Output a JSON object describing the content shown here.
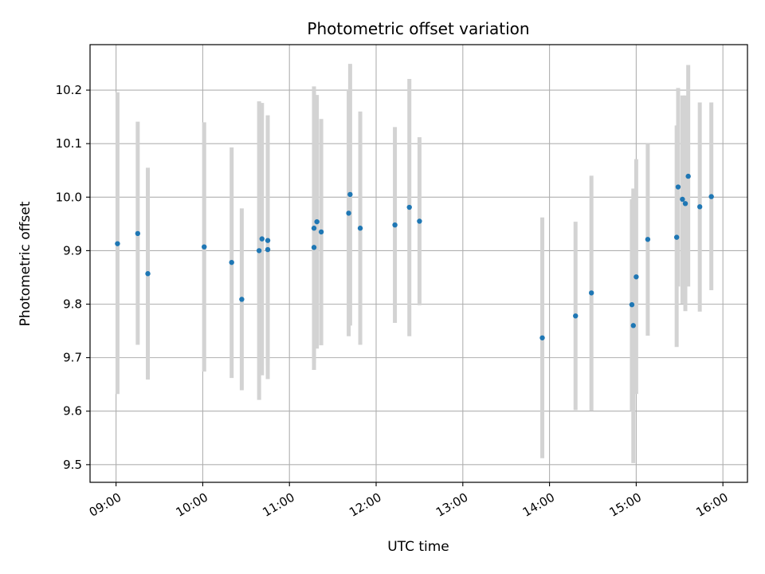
{
  "chart_data": {
    "type": "scatter",
    "title": "Photometric offset variation",
    "xlabel": "UTC time",
    "ylabel": "Photometric offset",
    "xlim": [
      "08:42",
      "16:17"
    ],
    "ylim": [
      9.467,
      10.285
    ],
    "grid": true,
    "x_ticks": [
      "09:00",
      "10:00",
      "11:00",
      "12:00",
      "13:00",
      "14:00",
      "15:00",
      "16:00"
    ],
    "y_ticks": [
      9.5,
      9.6,
      9.7,
      9.8,
      9.9,
      10.0,
      10.1,
      10.2
    ],
    "y_tick_labels": [
      "9.5",
      "9.6",
      "9.7",
      "9.8",
      "9.9",
      "10.0",
      "10.1",
      "10.2"
    ],
    "marker_color": "#1f77b4",
    "errorbar_color": "#d3d3d3",
    "series": [
      {
        "points": [
          {
            "x": "09:01",
            "y": 9.913,
            "ymin": 9.632,
            "ymax": 10.196
          },
          {
            "x": "09:15",
            "y": 9.932,
            "ymin": 9.724,
            "ymax": 10.141
          },
          {
            "x": "09:22",
            "y": 9.857,
            "ymin": 9.659,
            "ymax": 10.055
          },
          {
            "x": "10:01",
            "y": 9.907,
            "ymin": 9.674,
            "ymax": 10.14
          },
          {
            "x": "10:20",
            "y": 9.878,
            "ymin": 9.662,
            "ymax": 10.093
          },
          {
            "x": "10:27",
            "y": 9.809,
            "ymin": 9.639,
            "ymax": 9.979
          },
          {
            "x": "10:39",
            "y": 9.9,
            "ymin": 9.621,
            "ymax": 10.179
          },
          {
            "x": "10:41",
            "y": 9.922,
            "ymin": 9.667,
            "ymax": 10.176
          },
          {
            "x": "10:45",
            "y": 9.919,
            "ymin": 9.685,
            "ymax": 10.153
          },
          {
            "x": "10:45",
            "y": 9.902,
            "ymin": 9.66,
            "ymax": 10.144
          },
          {
            "x": "11:17",
            "y": 9.942,
            "ymin": 9.677,
            "ymax": 10.207
          },
          {
            "x": "11:17",
            "y": 9.906,
            "ymin": 9.69,
            "ymax": 10.198
          },
          {
            "x": "11:19",
            "y": 9.954,
            "ymin": 9.717,
            "ymax": 10.191
          },
          {
            "x": "11:22",
            "y": 9.935,
            "ymin": 9.723,
            "ymax": 10.146
          },
          {
            "x": "11:41",
            "y": 9.97,
            "ymin": 9.74,
            "ymax": 10.2
          },
          {
            "x": "11:42",
            "y": 10.005,
            "ymin": 9.76,
            "ymax": 10.249
          },
          {
            "x": "11:49",
            "y": 9.942,
            "ymin": 9.724,
            "ymax": 10.16
          },
          {
            "x": "12:13",
            "y": 9.948,
            "ymin": 9.765,
            "ymax": 10.131
          },
          {
            "x": "12:23",
            "y": 9.981,
            "ymin": 9.74,
            "ymax": 10.221
          },
          {
            "x": "12:30",
            "y": 9.955,
            "ymin": 9.798,
            "ymax": 10.112
          },
          {
            "x": "13:55",
            "y": 9.737,
            "ymin": 9.512,
            "ymax": 9.962
          },
          {
            "x": "14:18",
            "y": 9.778,
            "ymin": 9.602,
            "ymax": 9.954
          },
          {
            "x": "14:29",
            "y": 9.821,
            "ymin": 9.601,
            "ymax": 10.04
          },
          {
            "x": "14:57",
            "y": 9.799,
            "ymin": 9.6,
            "ymax": 9.996
          },
          {
            "x": "14:58",
            "y": 9.76,
            "ymin": 9.503,
            "ymax": 10.016
          },
          {
            "x": "15:00",
            "y": 9.851,
            "ymin": 9.632,
            "ymax": 10.071
          },
          {
            "x": "15:08",
            "y": 9.921,
            "ymin": 9.741,
            "ymax": 10.1
          },
          {
            "x": "15:28",
            "y": 9.925,
            "ymin": 9.72,
            "ymax": 10.134
          },
          {
            "x": "15:29",
            "y": 10.019,
            "ymin": 9.833,
            "ymax": 10.204
          },
          {
            "x": "15:32",
            "y": 9.996,
            "ymin": 9.801,
            "ymax": 10.19
          },
          {
            "x": "15:34",
            "y": 9.988,
            "ymin": 9.787,
            "ymax": 10.19
          },
          {
            "x": "15:36",
            "y": 10.039,
            "ymin": 9.833,
            "ymax": 10.247
          },
          {
            "x": "15:44",
            "y": 9.982,
            "ymin": 9.786,
            "ymax": 10.177
          },
          {
            "x": "15:52",
            "y": 10.001,
            "ymin": 9.826,
            "ymax": 10.177
          }
        ]
      }
    ]
  }
}
